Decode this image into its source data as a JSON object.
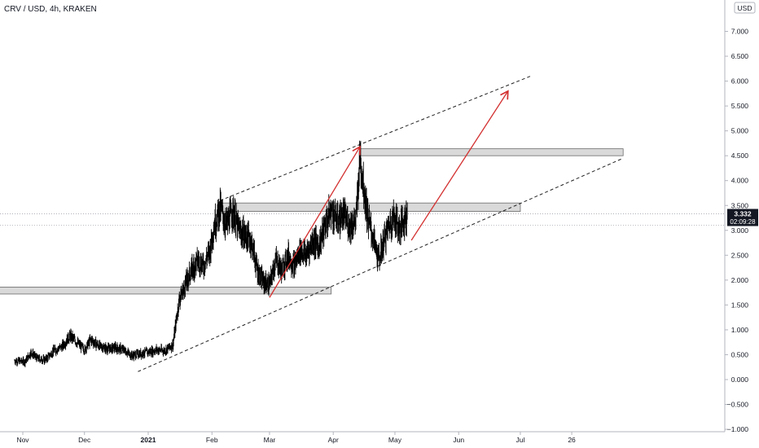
{
  "header": {
    "symbol": "CRV",
    "quote": "USD",
    "interval": "4h",
    "exchange": "KRAKEN",
    "title": "CRV / USD, 4h, KRAKEN"
  },
  "currency_badge": "USD",
  "price_label": {
    "price": "3.332",
    "countdown": "02:09:28"
  },
  "colors": {
    "candles": "#000000",
    "axis_text": "#131722",
    "price_label_bg": "#131722",
    "arrow": "#d32f2f",
    "zone_fill": "#d9d9d9",
    "zone_border": "#6b6b6b",
    "channel": "#222222"
  },
  "chart_data": {
    "type": "candlestick",
    "title": "CRV / USD, 4h, KRAKEN",
    "y_unit": "USD",
    "ylim": [
      -1.1,
      7.2
    ],
    "y_ticks": [
      "7.000",
      "6.500",
      "6.000",
      "5.500",
      "5.000",
      "4.500",
      "4.000",
      "3.500",
      "3.000",
      "2.500",
      "2.000",
      "1.500",
      "1.000",
      "0.500",
      "0.000",
      "−0.500",
      "−1.000"
    ],
    "y_tick_values": [
      7.0,
      6.5,
      6.0,
      5.5,
      5.0,
      4.5,
      4.0,
      3.5,
      3.0,
      2.5,
      2.0,
      1.5,
      1.0,
      0.5,
      0.0,
      -0.5,
      -1.0
    ],
    "x_ticks": [
      {
        "label": "Nov",
        "date": "2020-11-01"
      },
      {
        "label": "Dec",
        "date": "2020-12-01"
      },
      {
        "label": "2021",
        "date": "2021-01-01",
        "bold": true
      },
      {
        "label": "Feb",
        "date": "2021-02-01"
      },
      {
        "label": "Mar",
        "date": "2021-03-01"
      },
      {
        "label": "Apr",
        "date": "2021-04-01"
      },
      {
        "label": "May",
        "date": "2021-05-01"
      },
      {
        "label": "Jun",
        "date": "2021-06-01"
      },
      {
        "label": "Jul",
        "date": "2021-07-01"
      },
      {
        "label": "26",
        "date": "2021-07-26"
      }
    ],
    "price_path": [
      [
        "2020-10-28",
        0.38
      ],
      [
        "2020-11-02",
        0.36
      ],
      [
        "2020-11-05",
        0.55
      ],
      [
        "2020-11-08",
        0.42
      ],
      [
        "2020-11-12",
        0.4
      ],
      [
        "2020-11-16",
        0.58
      ],
      [
        "2020-11-20",
        0.66
      ],
      [
        "2020-11-24",
        0.88
      ],
      [
        "2020-11-28",
        0.72
      ],
      [
        "2020-12-01",
        0.6
      ],
      [
        "2020-12-04",
        0.8
      ],
      [
        "2020-12-08",
        0.68
      ],
      [
        "2020-12-12",
        0.62
      ],
      [
        "2020-12-16",
        0.64
      ],
      [
        "2020-12-20",
        0.6
      ],
      [
        "2020-12-24",
        0.48
      ],
      [
        "2020-12-28",
        0.52
      ],
      [
        "2021-01-01",
        0.55
      ],
      [
        "2021-01-05",
        0.6
      ],
      [
        "2021-01-09",
        0.58
      ],
      [
        "2021-01-13",
        0.7
      ],
      [
        "2021-01-16",
        1.6
      ],
      [
        "2021-01-19",
        1.9
      ],
      [
        "2021-01-22",
        2.2
      ],
      [
        "2021-01-25",
        2.4
      ],
      [
        "2021-01-28",
        2.3
      ],
      [
        "2021-01-31",
        2.6
      ],
      [
        "2021-02-02",
        3.1
      ],
      [
        "2021-02-05",
        3.45
      ],
      [
        "2021-02-08",
        3.1
      ],
      [
        "2021-02-11",
        3.4
      ],
      [
        "2021-02-14",
        3.0
      ],
      [
        "2021-02-17",
        2.9
      ],
      [
        "2021-02-20",
        2.8
      ],
      [
        "2021-02-23",
        2.2
      ],
      [
        "2021-02-26",
        1.95
      ],
      [
        "2021-03-01",
        1.9
      ],
      [
        "2021-03-04",
        2.4
      ],
      [
        "2021-03-07",
        2.2
      ],
      [
        "2021-03-10",
        2.5
      ],
      [
        "2021-03-13",
        2.3
      ],
      [
        "2021-03-16",
        2.6
      ],
      [
        "2021-03-19",
        2.5
      ],
      [
        "2021-03-22",
        2.8
      ],
      [
        "2021-03-25",
        2.7
      ],
      [
        "2021-03-28",
        3.1
      ],
      [
        "2021-03-31",
        3.4
      ],
      [
        "2021-04-03",
        3.2
      ],
      [
        "2021-04-06",
        3.3
      ],
      [
        "2021-04-09",
        3.1
      ],
      [
        "2021-04-12",
        3.2
      ],
      [
        "2021-04-14",
        4.5
      ],
      [
        "2021-04-16",
        3.8
      ],
      [
        "2021-04-18",
        3.2
      ],
      [
        "2021-04-20",
        2.9
      ],
      [
        "2021-04-23",
        2.4
      ],
      [
        "2021-04-25",
        2.7
      ],
      [
        "2021-04-28",
        3.1
      ],
      [
        "2021-05-01",
        3.3
      ],
      [
        "2021-05-03",
        3.0
      ],
      [
        "2021-05-05",
        3.2
      ],
      [
        "2021-05-07",
        3.332
      ]
    ],
    "support_resistance_zones": [
      {
        "from": "2020-10-20",
        "to": "2021-03-31",
        "low": 1.72,
        "high": 1.86
      },
      {
        "from": "2021-02-05",
        "to": "2021-07-01",
        "low": 3.38,
        "high": 3.55
      },
      {
        "from": "2021-04-14",
        "to": "2021-08-20",
        "low": 4.5,
        "high": 4.64
      }
    ],
    "channel_lines": [
      {
        "from": [
          "2020-12-27",
          0.16
        ],
        "to": [
          "2021-08-20",
          4.45
        ]
      },
      {
        "from": [
          "2021-02-05",
          3.6
        ],
        "to": [
          "2021-07-06",
          6.1
        ]
      }
    ],
    "arrows": [
      {
        "from": [
          "2021-03-01",
          1.65
        ],
        "to": [
          "2021-04-14",
          4.68
        ]
      },
      {
        "from": [
          "2021-05-09",
          2.8
        ],
        "to": [
          "2021-06-25",
          5.8
        ]
      }
    ],
    "horizontal_levels": [
      3.332,
      3.1
    ],
    "last_price": 3.332
  }
}
